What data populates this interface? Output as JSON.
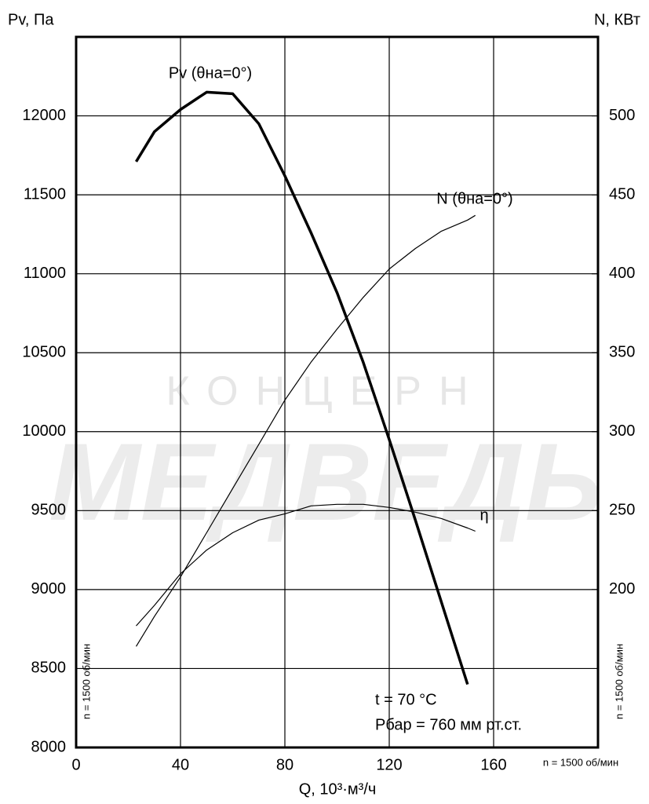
{
  "chart_data": {
    "type": "line",
    "y_label": "Pv, Па",
    "y2_label": "N, КВт",
    "x_label": "Q, 10³·м³/ч",
    "x": [
      23,
      30,
      40,
      50,
      60,
      70,
      80,
      90,
      100,
      110,
      120,
      130,
      140,
      150,
      153
    ],
    "xlim": [
      0,
      200
    ],
    "xticks": [
      0,
      40,
      80,
      120,
      160
    ],
    "ylim": [
      8000,
      12500
    ],
    "yticks": [
      8000,
      8500,
      9000,
      9500,
      10000,
      10500,
      11000,
      11500,
      12000
    ],
    "y2lim": [
      100,
      550
    ],
    "y2ticks": [
      200,
      250,
      300,
      350,
      400,
      450,
      500
    ],
    "grid": true,
    "series": [
      {
        "name": "Pv (θна=0°)",
        "color": "#000000",
        "width": 3.5,
        "values": [
          11710,
          11900,
          12040,
          12150,
          12140,
          11950,
          11620,
          11260,
          10880,
          10440,
          9950,
          9440,
          8920,
          8400,
          null
        ]
      },
      {
        "name": "N (θна=0°)",
        "color": "#000000",
        "width": 1.2,
        "axis": "y2",
        "values": [
          164,
          183,
          208,
          236,
          264,
          292,
          320,
          344,
          365,
          385,
          403,
          416,
          427,
          434,
          437
        ]
      },
      {
        "name": "η",
        "color": "#000000",
        "width": 1.2,
        "values": [
          8770,
          8900,
          9100,
          9250,
          9360,
          9440,
          9480,
          9530,
          9540,
          9540,
          9520,
          9490,
          9450,
          9390,
          9370
        ]
      }
    ],
    "annotations": [
      "t = 70 °C",
      "Pбар = 760 мм рт.ст."
    ],
    "speed_labels": [
      "n = 1500 об/мин",
      "n = 1500 об/мин",
      "n = 1500 об/мин"
    ],
    "watermark": [
      "КОНЦЕРН",
      "МЕДВЕДЬ"
    ]
  }
}
